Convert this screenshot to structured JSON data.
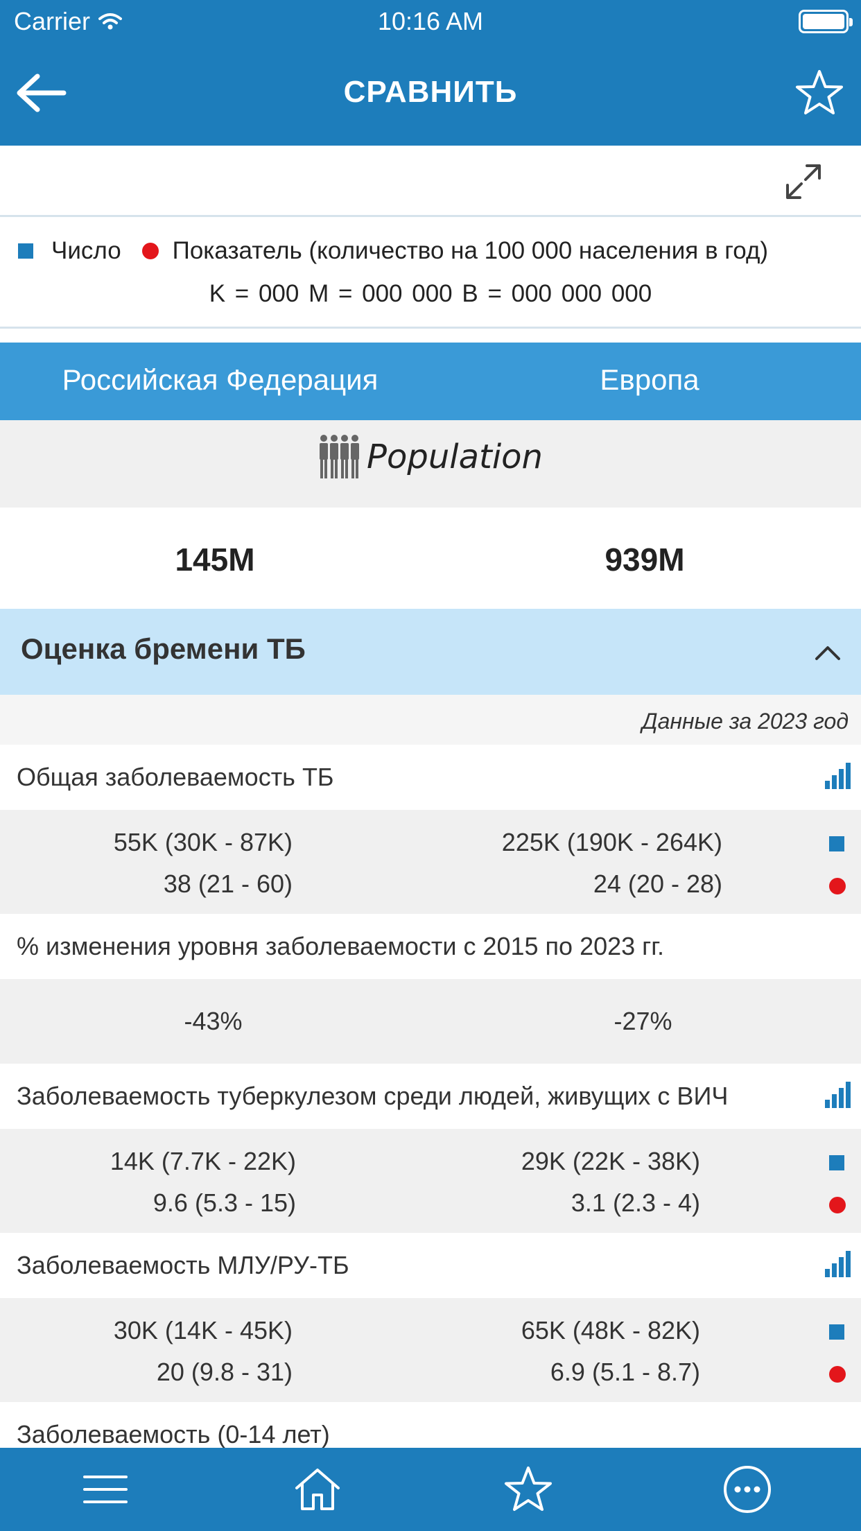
{
  "status_bar": {
    "carrier": "Carrier",
    "time": "10:16 AM"
  },
  "nav": {
    "title": "СРАВНИТЬ"
  },
  "legend": {
    "count_label": "Число",
    "rate_label": "Показатель (количество на 100 000 населения в год)",
    "units": "K = 000   M = 000 000   B = 000 000 000",
    "count_color": "#1d7dbb",
    "rate_color": "#e3161b"
  },
  "regions": [
    "Российская Федерация",
    "Европа"
  ],
  "population": {
    "label": "Population",
    "values": [
      "145M",
      "939M"
    ]
  },
  "section": {
    "title": "Оценка бремени ТБ"
  },
  "year_note": "Данные за 2023 год",
  "metrics": [
    {
      "title": "Общая заболеваемость ТБ",
      "count": [
        "55K (30K - 87K)",
        "225K (190K - 264K)"
      ],
      "rate": [
        "38 (21 - 60)",
        "24 (20 - 28)"
      ]
    },
    {
      "title": "% изменения уровня заболеваемости с 2015 по 2023 гг.",
      "values": [
        "-43%",
        "-27%"
      ]
    },
    {
      "title": "Заболеваемость туберкулезом среди людей, живущих с ВИЧ",
      "count": [
        "14K (7.7K - 22K)",
        "29K (22K - 38K)"
      ],
      "rate": [
        "9.6 (5.3 - 15)",
        "3.1 (2.3 - 4)"
      ]
    },
    {
      "title": "Заболеваемость МЛУ/РУ-ТБ",
      "count": [
        "30K (14K - 45K)",
        "65K (48K - 82K)"
      ],
      "rate": [
        "20 (9.8 - 31)",
        "6.9 (5.1 - 8.7)"
      ]
    },
    {
      "title": "Заболеваемость (0-14 лет)"
    }
  ],
  "tabbar": [
    "menu-icon",
    "home-icon",
    "star-icon",
    "more-icon"
  ],
  "colors": {
    "primary": "#1d7dbb",
    "region_header": "#3a9ad7",
    "section_bg": "#c6e5f9"
  }
}
